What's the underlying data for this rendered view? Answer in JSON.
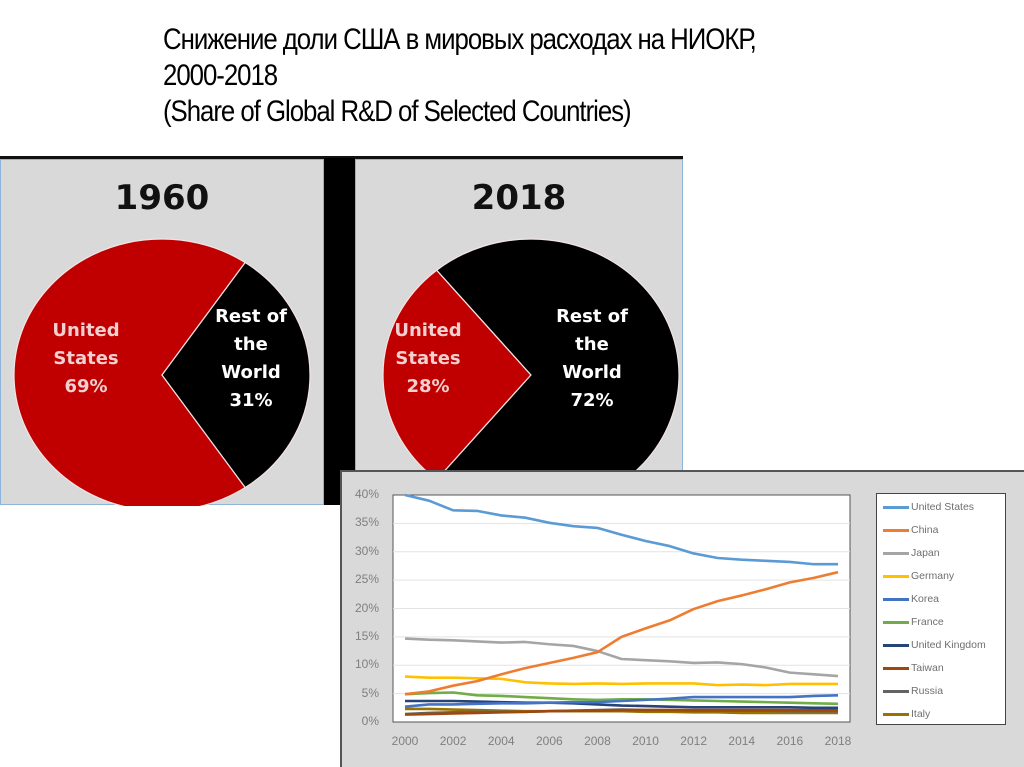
{
  "title": {
    "line1": "Снижение доли США в мировых расходах на НИОКР,",
    "line2": "2000-2018",
    "line3": "(Share of Global R&D of Selected Countries)"
  },
  "pies": [
    {
      "year": "1960",
      "slices": [
        {
          "label_lines": [
            "United",
            "States",
            "69%"
          ],
          "value": 69,
          "color": "#c00000"
        },
        {
          "label_lines": [
            "Rest of",
            "the",
            "World",
            "31%"
          ],
          "value": 31,
          "color": "#000000"
        }
      ]
    },
    {
      "year": "2018",
      "slices": [
        {
          "label_lines": [
            "United",
            "States",
            "28%"
          ],
          "value": 28,
          "color": "#c00000"
        },
        {
          "label_lines": [
            "Rest of",
            "the",
            "World",
            "72%"
          ],
          "value": 72,
          "color": "#000000"
        }
      ]
    }
  ],
  "chart_data": [
    {
      "type": "pie",
      "title": "1960",
      "categories": [
        "United States",
        "Rest of the World"
      ],
      "values": [
        69,
        31
      ],
      "colors": [
        "#c00000",
        "#000000"
      ]
    },
    {
      "type": "pie",
      "title": "2018",
      "categories": [
        "United States",
        "Rest of the World"
      ],
      "values": [
        28,
        72
      ],
      "colors": [
        "#c00000",
        "#000000"
      ]
    },
    {
      "type": "line",
      "title": "Share of Global R&D of Selected Countries",
      "xlabel": "",
      "ylabel": "",
      "ylim": [
        0,
        40
      ],
      "yticks": [
        "0%",
        "5%",
        "10%",
        "15%",
        "20%",
        "25%",
        "30%",
        "35%",
        "40%"
      ],
      "xticks": [
        "2000",
        "2002",
        "2004",
        "2006",
        "2008",
        "2010",
        "2012",
        "2014",
        "2016",
        "2018"
      ],
      "grid": true,
      "legend_position": "right",
      "x": [
        2000,
        2001,
        2002,
        2003,
        2004,
        2005,
        2006,
        2007,
        2008,
        2009,
        2010,
        2011,
        2012,
        2013,
        2014,
        2015,
        2016,
        2017,
        2018
      ],
      "series": [
        {
          "name": "United States",
          "color": "#5b9bd5",
          "values": [
            40.0,
            39.0,
            37.3,
            37.2,
            36.4,
            36.0,
            35.1,
            34.5,
            34.2,
            33.0,
            31.9,
            31.0,
            29.7,
            28.9,
            28.6,
            28.4,
            28.2,
            27.8,
            27.8
          ]
        },
        {
          "name": "China",
          "color": "#ed7d31",
          "values": [
            4.9,
            5.4,
            6.4,
            7.2,
            8.4,
            9.5,
            10.4,
            11.3,
            12.3,
            15.0,
            16.5,
            17.9,
            19.9,
            21.3,
            22.3,
            23.4,
            24.6,
            25.4,
            26.4
          ]
        },
        {
          "name": "Japan",
          "color": "#a5a5a5",
          "values": [
            14.7,
            14.5,
            14.4,
            14.2,
            14.0,
            14.1,
            13.7,
            13.4,
            12.5,
            11.1,
            10.9,
            10.7,
            10.4,
            10.5,
            10.2,
            9.6,
            8.7,
            8.4,
            8.1
          ]
        },
        {
          "name": "Germany",
          "color": "#ffc000",
          "values": [
            8.0,
            7.8,
            7.8,
            7.7,
            7.6,
            7.0,
            6.8,
            6.7,
            6.8,
            6.7,
            6.8,
            6.8,
            6.8,
            6.5,
            6.6,
            6.5,
            6.7,
            6.7,
            6.7
          ]
        },
        {
          "name": "Korea",
          "color": "#4472c4",
          "values": [
            2.7,
            3.1,
            3.1,
            3.2,
            3.3,
            3.3,
            3.4,
            3.5,
            3.5,
            3.7,
            3.9,
            4.1,
            4.4,
            4.4,
            4.4,
            4.4,
            4.4,
            4.6,
            4.7
          ]
        },
        {
          "name": "France",
          "color": "#70ad47",
          "values": [
            4.9,
            5.1,
            5.2,
            4.7,
            4.6,
            4.4,
            4.2,
            4.0,
            3.9,
            4.0,
            4.0,
            3.9,
            3.8,
            3.7,
            3.6,
            3.5,
            3.4,
            3.3,
            3.2
          ]
        },
        {
          "name": "United Kingdom",
          "color": "#264478",
          "values": [
            3.7,
            3.7,
            3.7,
            3.6,
            3.5,
            3.4,
            3.4,
            3.3,
            3.1,
            2.9,
            2.8,
            2.7,
            2.6,
            2.6,
            2.6,
            2.6,
            2.6,
            2.5,
            2.5
          ]
        },
        {
          "name": "Taiwan",
          "color": "#9e480e",
          "values": [
            1.3,
            1.4,
            1.5,
            1.6,
            1.7,
            1.8,
            1.9,
            2.0,
            2.0,
            2.1,
            2.1,
            2.1,
            2.1,
            2.1,
            2.1,
            2.1,
            2.1,
            2.1,
            2.1
          ]
        },
        {
          "name": "Russia",
          "color": "#636363",
          "values": [
            1.4,
            1.6,
            1.7,
            1.8,
            1.8,
            1.8,
            1.9,
            2.0,
            2.1,
            2.2,
            2.1,
            2.1,
            2.0,
            2.0,
            2.0,
            2.0,
            1.9,
            1.9,
            1.9
          ]
        },
        {
          "name": "Italy",
          "color": "#997300",
          "values": [
            2.3,
            2.3,
            2.2,
            2.1,
            2.0,
            1.9,
            1.9,
            1.9,
            1.9,
            1.9,
            1.8,
            1.8,
            1.7,
            1.7,
            1.6,
            1.6,
            1.6,
            1.6,
            1.6
          ]
        }
      ]
    }
  ]
}
